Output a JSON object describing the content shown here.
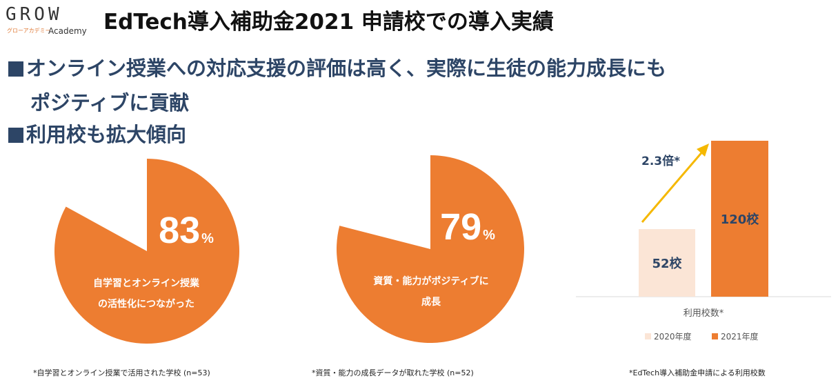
{
  "logo": {
    "main": "GROW",
    "kana": "グローアカデミー",
    "sub": "Academy"
  },
  "title": "EdTech導入補助金2021 申請校での導入実績",
  "bullets": [
    "オンライン授業への対応支援の評価は高く、実際に生徒の能力成長にも",
    "ポジティブに貢献",
    "利用校も拡大傾向"
  ],
  "colors": {
    "orange": "#ed7d31",
    "light": "#fbe5d6",
    "navy": "#2d4566",
    "arrow": "#f5b800"
  },
  "chart_data": [
    {
      "type": "pie",
      "values": [
        83,
        17
      ],
      "value_label": "83",
      "unit": "%",
      "caption_lines": [
        "自学習とオンライン授業",
        "の活性化につながった"
      ],
      "footnote": "*自学習とオンライン授業で活用された学校 (n=53)"
    },
    {
      "type": "pie",
      "values": [
        79,
        21
      ],
      "value_label": "79",
      "unit": "%",
      "caption_lines": [
        "資質・能力がポジティブに",
        "成長"
      ],
      "footnote": "*資質・能力の成長データが取れた学校 (n=52)"
    },
    {
      "type": "bar",
      "categories": [
        "利用校数*"
      ],
      "series": [
        {
          "name": "2020年度",
          "values": [
            52
          ],
          "label": "52校",
          "color": "#fbe5d6"
        },
        {
          "name": "2021年度",
          "values": [
            120
          ],
          "label": "120校",
          "color": "#ed7d31"
        }
      ],
      "xlabel": "利用校数*",
      "ylim": [
        0,
        120
      ],
      "annotation": "2.3倍*",
      "legend": "bottom",
      "footnote": "*EdTech導入補助金申請による利用校数"
    }
  ]
}
